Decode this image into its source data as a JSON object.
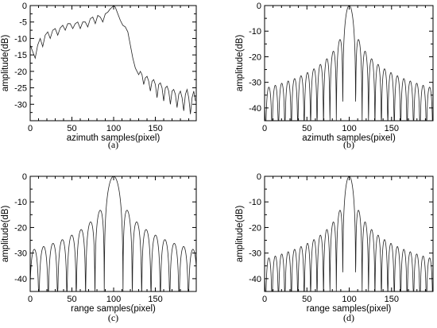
{
  "chart_data": [
    {
      "type": "line",
      "caption": "(a)",
      "xlabel": "azimuth samples(pixel)",
      "ylabel": "amplitude(dB)",
      "xlim": [
        0,
        199
      ],
      "ylim": [
        -35,
        0
      ],
      "xticks": [
        0,
        50,
        100,
        150
      ],
      "yticks": [
        0,
        -5,
        -10,
        -15,
        -20,
        -25,
        -30
      ],
      "grid": false,
      "series": [
        {
          "x": [
            0,
            3,
            6,
            9,
            12,
            15,
            18,
            21,
            24,
            27,
            30,
            33,
            36,
            39,
            42,
            45,
            48,
            51,
            54,
            57,
            60,
            63,
            66,
            69,
            72,
            75,
            78,
            81,
            84,
            87,
            90,
            93,
            96,
            99,
            100,
            102,
            105,
            108,
            111,
            114,
            117,
            120,
            123,
            126,
            128,
            130,
            132,
            134,
            136,
            138,
            140,
            142,
            144,
            146,
            148,
            150,
            152,
            154,
            156,
            158,
            160,
            162,
            164,
            166,
            168,
            170,
            172,
            174,
            176,
            178,
            180,
            182,
            184,
            186,
            188,
            190,
            192,
            194,
            196,
            198
          ],
          "y": [
            -12,
            -14,
            -16,
            -12,
            -10,
            -12.5,
            -9,
            -8,
            -10,
            -7.5,
            -7,
            -9,
            -6.8,
            -6,
            -7.5,
            -5.5,
            -5.5,
            -7,
            -5.5,
            -5,
            -7,
            -5,
            -5,
            -6.5,
            -4,
            -3.5,
            -5.5,
            -3,
            -3.5,
            -5,
            -2.5,
            -2,
            -1,
            -0.3,
            0,
            -0.5,
            -2.5,
            -4.5,
            -6,
            -6.5,
            -8,
            -12,
            -16,
            -19,
            -20,
            -21,
            -20,
            -21,
            -24,
            -22,
            -21.5,
            -23,
            -26,
            -23,
            -22.5,
            -24,
            -28,
            -24,
            -23.5,
            -25,
            -29,
            -25,
            -24.5,
            -26,
            -30,
            -26,
            -25.5,
            -27,
            -31,
            -27,
            -26,
            -28,
            -32,
            -27,
            -25.5,
            -28,
            -33,
            -28,
            -26,
            -29
          ]
        }
      ]
    },
    {
      "type": "line",
      "caption": "(b)",
      "xlabel": "azimuth samples(pixel)",
      "ylabel": "amplitude(dB)",
      "xlim": [
        0,
        199
      ],
      "ylim": [
        -45,
        0
      ],
      "xticks": [
        0,
        50,
        100,
        150
      ],
      "yticks": [
        0,
        -10,
        -20,
        -30,
        -40
      ],
      "grid": false,
      "sinc": {
        "center": 100,
        "period": 7.6,
        "peak_db": 0,
        "floor_db": -45
      }
    },
    {
      "type": "line",
      "caption": "(c)",
      "xlabel": "range samples(pixel)",
      "ylabel": "amplitude(dB)",
      "xlim": [
        0,
        199
      ],
      "ylim": [
        -45,
        0
      ],
      "xticks": [
        0,
        50,
        100,
        150
      ],
      "yticks": [
        0,
        -10,
        -20,
        -30,
        -40
      ],
      "grid": false,
      "sinc": {
        "center": 100,
        "period": 11.2,
        "peak_db": 0,
        "floor_db": -45
      }
    },
    {
      "type": "line",
      "caption": "(d)",
      "xlabel": "range samples(pixel)",
      "ylabel": "amplitude(dB)",
      "xlim": [
        0,
        199
      ],
      "ylim": [
        -45,
        0
      ],
      "xticks": [
        0,
        50,
        100,
        150
      ],
      "yticks": [
        0,
        -10,
        -20,
        -30,
        -40
      ],
      "grid": false,
      "sinc": {
        "center": 100,
        "period": 7.6,
        "peak_db": 0,
        "floor_db": -45
      }
    }
  ]
}
